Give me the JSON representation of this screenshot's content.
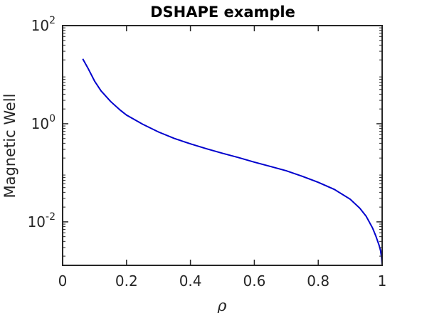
{
  "chart_data": {
    "type": "line",
    "title": "DSHAPE example",
    "xlabel": "ρ",
    "ylabel": "Magnetic Well",
    "xlim": [
      0,
      1
    ],
    "ylim": [
      0.0013,
      100
    ],
    "yscale": "log",
    "grid": false,
    "legend": "none",
    "xticks": [
      {
        "value": 0,
        "label": "0"
      },
      {
        "value": 0.2,
        "label": "0.2"
      },
      {
        "value": 0.4,
        "label": "0.4"
      },
      {
        "value": 0.6,
        "label": "0.6"
      },
      {
        "value": 0.8,
        "label": "0.8"
      },
      {
        "value": 1,
        "label": "1"
      }
    ],
    "yticks": [
      {
        "value": 100,
        "base": "10",
        "exp": "2"
      },
      {
        "value": 1,
        "base": "10",
        "exp": "0"
      },
      {
        "value": 0.01,
        "base": "10",
        "exp": "-2"
      }
    ],
    "series": [
      {
        "color": "#0000cd",
        "x": [
          0.063,
          0.08,
          0.1,
          0.12,
          0.15,
          0.18,
          0.2,
          0.25,
          0.3,
          0.35,
          0.4,
          0.45,
          0.5,
          0.55,
          0.6,
          0.65,
          0.7,
          0.75,
          0.8,
          0.85,
          0.9,
          0.93,
          0.95,
          0.97,
          0.98,
          0.99,
          0.995,
          0.998,
          1.0
        ],
        "y": [
          21,
          13.3,
          7.4,
          4.7,
          2.85,
          1.9,
          1.5,
          0.98,
          0.68,
          0.5,
          0.39,
          0.31,
          0.25,
          0.205,
          0.165,
          0.135,
          0.11,
          0.085,
          0.064,
          0.046,
          0.029,
          0.019,
          0.013,
          0.0075,
          0.0052,
          0.0034,
          0.0026,
          0.0019,
          0.0013
        ]
      }
    ]
  }
}
